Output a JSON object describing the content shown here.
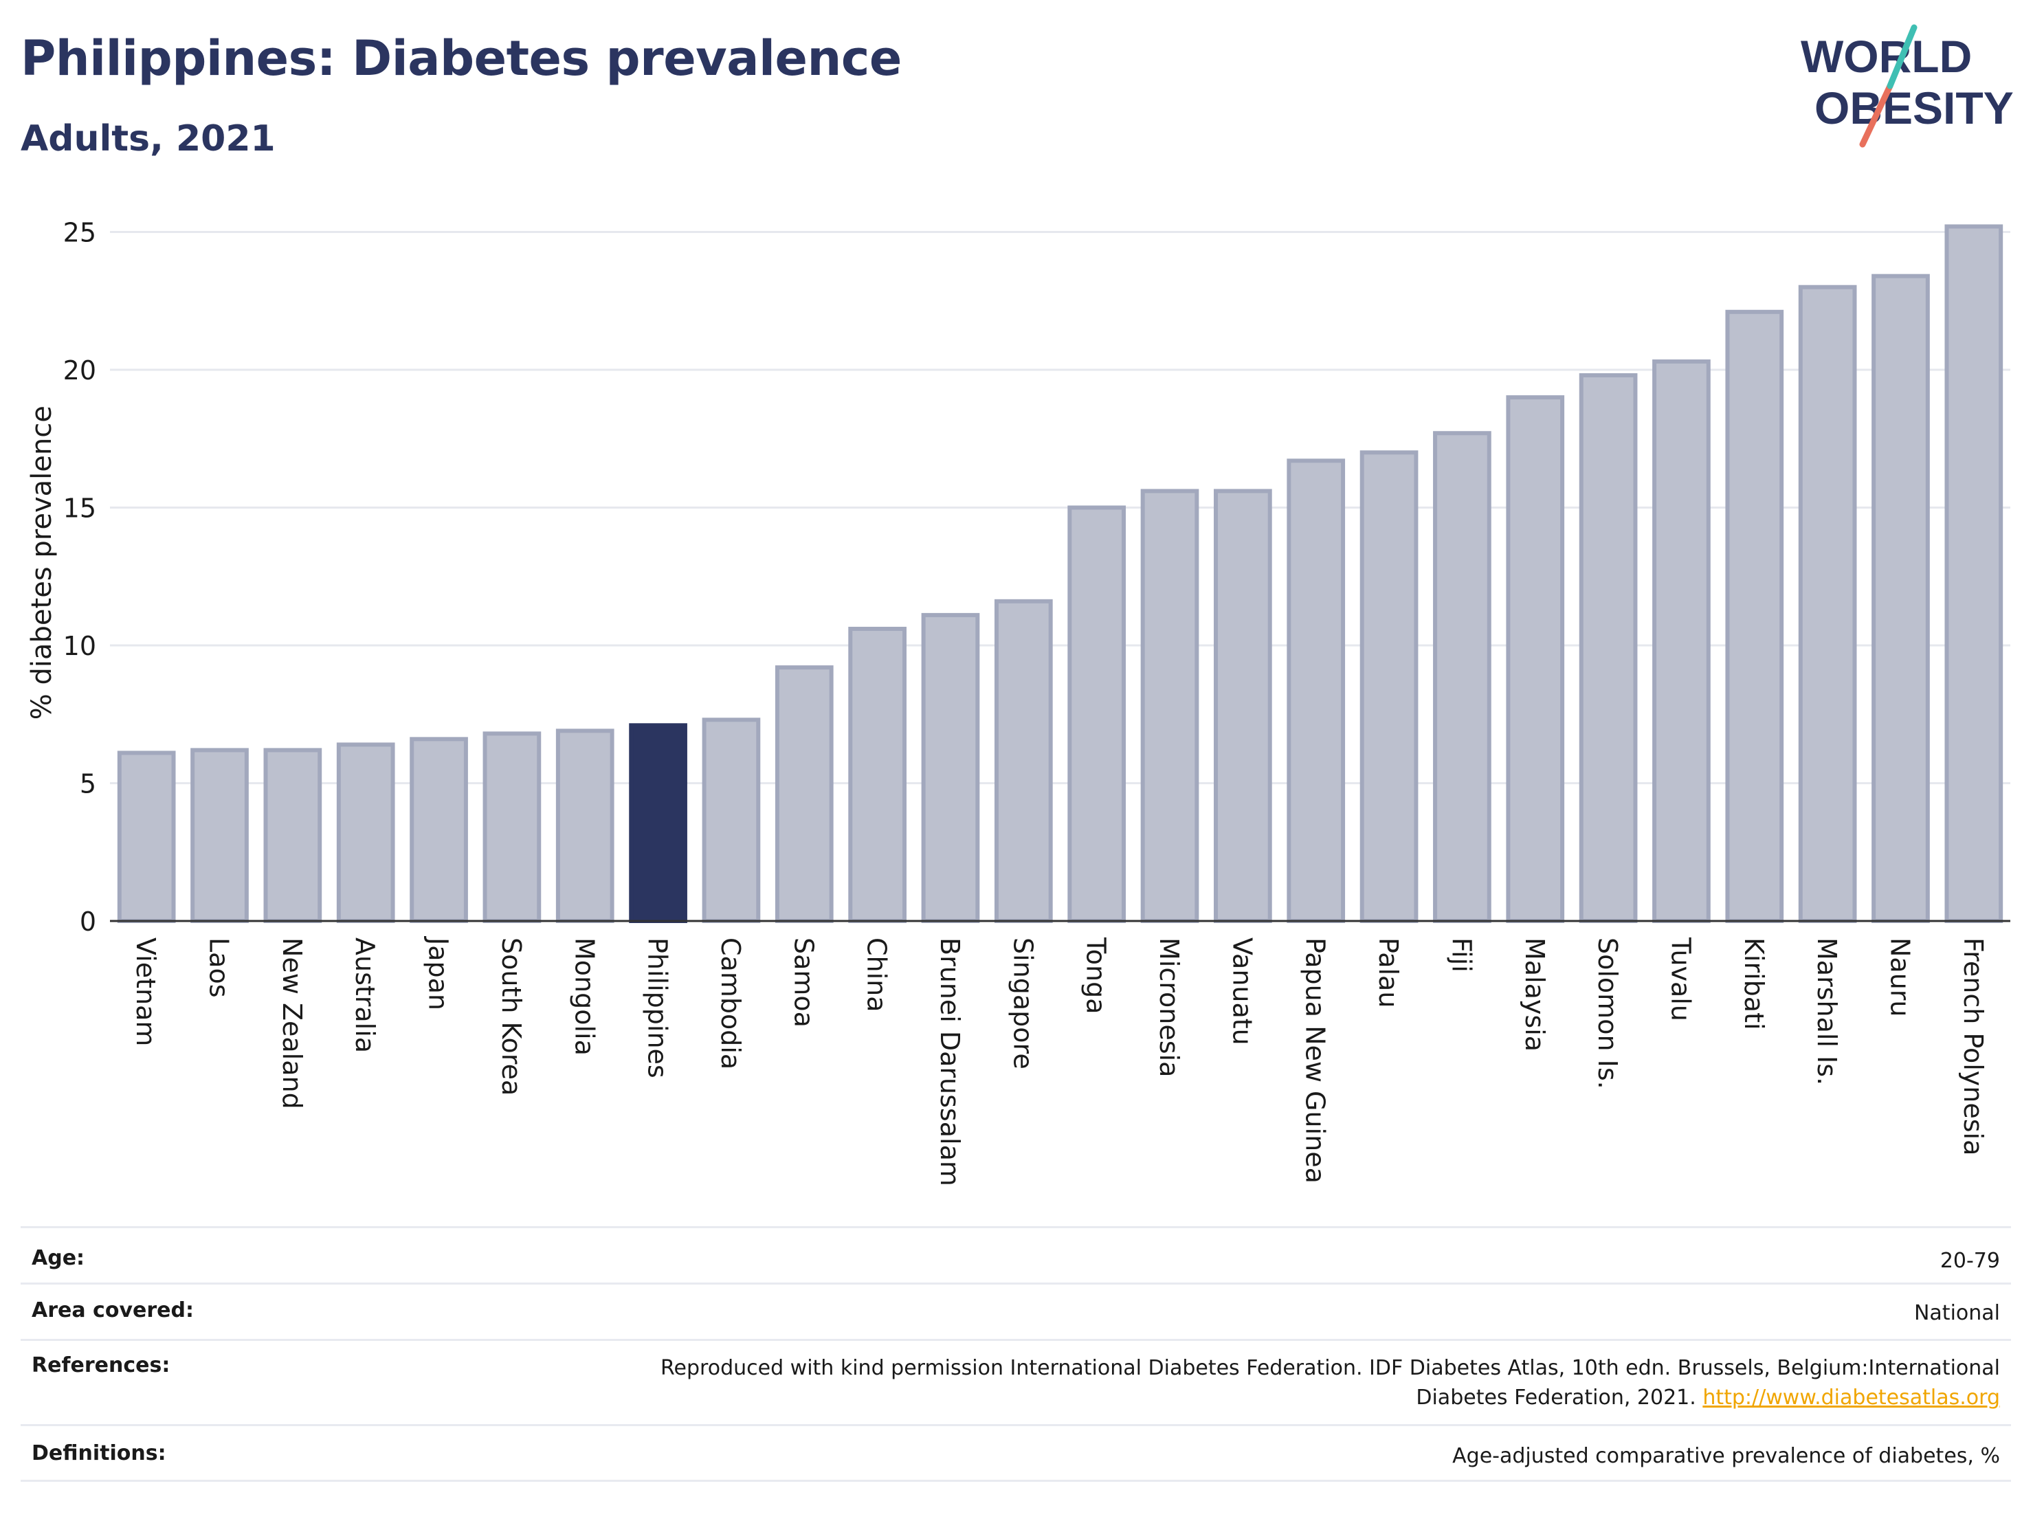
{
  "header": {
    "title": "Philippines: Diabetes prevalence",
    "subtitle": "Adults, 2021"
  },
  "logo": {
    "line1": "WORLD",
    "line2": "OBESITY",
    "color_text": "#2b3560",
    "color_teal": "#3fbfb3",
    "color_coral": "#e8705c"
  },
  "colors": {
    "bar": "#bcc0ce",
    "bar_stroke": "#a2a8bd",
    "highlight": "#2b3560",
    "grid": "#e6e8ee"
  },
  "chart_data": {
    "type": "bar",
    "title": "Philippines: Diabetes prevalence",
    "subtitle": "Adults, 2021",
    "ylabel": "% diabetes prevalence",
    "xlabel": "",
    "ylim": [
      0,
      26
    ],
    "yticks": [
      0,
      5,
      10,
      15,
      20,
      25
    ],
    "grid": true,
    "highlight": "Philippines",
    "categories": [
      "Vietnam",
      "Laos",
      "New Zealand",
      "Australia",
      "Japan",
      "South Korea",
      "Mongolia",
      "Philippines",
      "Cambodia",
      "Samoa",
      "China",
      "Brunei Darussalam",
      "Singapore",
      "Tonga",
      "Micronesia",
      "Vanuatu",
      "Papua New Guinea",
      "Palau",
      "Fiji",
      "Malaysia",
      "Solomon Is.",
      "Tuvalu",
      "Kiribati",
      "Marshall Is.",
      "Nauru",
      "French Polynesia"
    ],
    "values": [
      6.1,
      6.2,
      6.2,
      6.4,
      6.6,
      6.8,
      6.9,
      7.1,
      7.3,
      9.2,
      10.6,
      11.1,
      11.6,
      15.0,
      15.6,
      15.6,
      16.7,
      17.0,
      17.7,
      19.0,
      19.8,
      20.3,
      22.1,
      23.0,
      23.4,
      25.2
    ]
  },
  "meta": {
    "age_label": "Age:",
    "age_value": "20-79",
    "area_label": "Area covered:",
    "area_value": "National",
    "ref_label": "References:",
    "ref_line1": "Reproduced with kind permission International Diabetes Federation.  IDF Diabetes Atlas, 10th edn. Brussels, Belgium:International",
    "ref_line2": "Diabetes Federation, 2021.",
    "ref_link": "http://www.diabetesatlas.org",
    "def_label": "Definitions:",
    "def_value": "Age-adjusted comparative prevalence of diabetes, %"
  }
}
